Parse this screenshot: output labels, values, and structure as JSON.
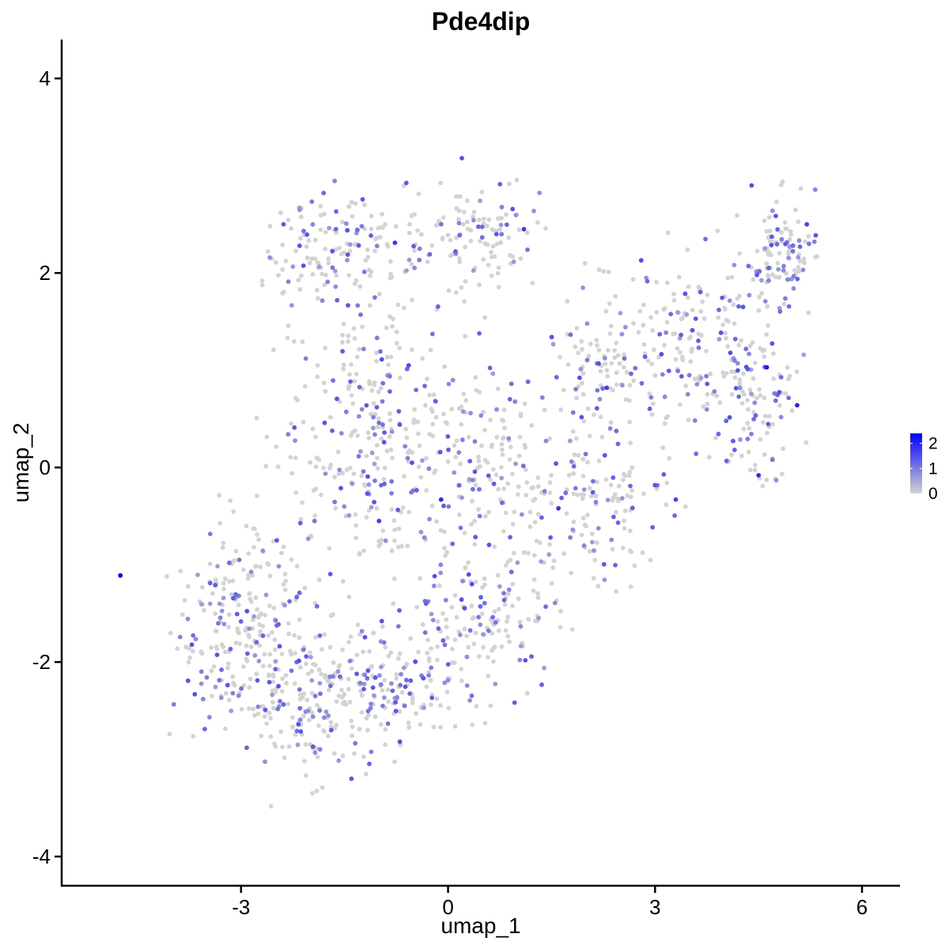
{
  "chart_data": {
    "type": "scatter",
    "title": "Pde4dip",
    "xlabel": "umap_1",
    "ylabel": "umap_2",
    "xlim": [
      -5.6,
      6.55
    ],
    "ylim": [
      -4.3,
      4.4
    ],
    "x_ticks": [
      -3,
      0,
      3,
      6
    ],
    "y_ticks": [
      -4,
      -2,
      0,
      2,
      4
    ],
    "x_tick_labels": [
      "-3",
      "0",
      "3",
      "6"
    ],
    "y_tick_labels": [
      "-4",
      "-2",
      "0",
      "2",
      "4"
    ],
    "grid": false,
    "legend": {
      "placement": "right",
      "type": "gradient",
      "title": "",
      "min": 0,
      "max": 2.4,
      "ticks": [
        0,
        1,
        2
      ],
      "tick_labels": [
        "0",
        "1",
        "2"
      ],
      "color_low": "#d3d3d3",
      "color_high": "#0000ff"
    },
    "point_colors": {
      "low": "#d3d3d3",
      "high": "#0000ff"
    },
    "highlighted_points": [
      {
        "x": -4.75,
        "y": -1.11,
        "value": 2.4
      },
      {
        "x": 4.62,
        "y": 1.03,
        "value": 2.1
      },
      {
        "x": 5.06,
        "y": 0.64,
        "value": 2.0
      },
      {
        "x": 0.2,
        "y": 3.18,
        "value": 1.5
      },
      {
        "x": -0.77,
        "y": 2.31,
        "value": 1.8
      },
      {
        "x": 1.1,
        "y": 2.45,
        "value": 1.7
      },
      {
        "x": -0.57,
        "y": 1.05,
        "value": 1.6
      },
      {
        "x": -0.1,
        "y": -0.33,
        "value": 1.9
      },
      {
        "x": 1.6,
        "y": -0.42,
        "value": 1.8
      },
      {
        "x": 2.3,
        "y": 0.82,
        "value": 1.7
      },
      {
        "x": 3.3,
        "y": -0.33,
        "value": 1.6
      },
      {
        "x": 4.5,
        "y": -0.08,
        "value": 1.9
      },
      {
        "x": -1.0,
        "y": -0.55,
        "value": 1.7
      },
      {
        "x": 0.3,
        "y": -1.1,
        "value": 1.5
      },
      {
        "x": -1.4,
        "y": -3.2,
        "value": 1.4
      },
      {
        "x": 2.8,
        "y": 2.13,
        "value": 1.5
      },
      {
        "x": 5.2,
        "y": 2.5,
        "value": 1.6
      },
      {
        "x": 4.4,
        "y": 2.9,
        "value": 1.5
      }
    ],
    "clusters": [
      {
        "center_x": -3.0,
        "center_y": -1.6,
        "spread_x": 0.9,
        "spread_y": 0.9,
        "count": 240
      },
      {
        "center_x": -2.0,
        "center_y": -2.4,
        "spread_x": 0.8,
        "spread_y": 0.6,
        "count": 170
      },
      {
        "center_x": -0.8,
        "center_y": -2.3,
        "spread_x": 0.9,
        "spread_y": 0.6,
        "count": 150
      },
      {
        "center_x": -1.2,
        "center_y": 0.4,
        "spread_x": 1.1,
        "spread_y": 1.2,
        "count": 260
      },
      {
        "center_x": -1.6,
        "center_y": 2.2,
        "spread_x": 1.0,
        "spread_y": 0.5,
        "count": 150
      },
      {
        "center_x": 0.4,
        "center_y": 2.4,
        "spread_x": 0.8,
        "spread_y": 0.5,
        "count": 110
      },
      {
        "center_x": 0.5,
        "center_y": 0.0,
        "spread_x": 1.0,
        "spread_y": 1.1,
        "count": 200
      },
      {
        "center_x": 0.5,
        "center_y": -1.6,
        "spread_x": 0.9,
        "spread_y": 0.6,
        "count": 140
      },
      {
        "center_x": 2.2,
        "center_y": -0.4,
        "spread_x": 0.8,
        "spread_y": 0.7,
        "count": 130
      },
      {
        "center_x": 2.5,
        "center_y": 1.1,
        "spread_x": 0.8,
        "spread_y": 0.6,
        "count": 120
      },
      {
        "center_x": 3.8,
        "center_y": 1.2,
        "spread_x": 0.8,
        "spread_y": 0.8,
        "count": 160
      },
      {
        "center_x": 4.8,
        "center_y": 2.2,
        "spread_x": 0.45,
        "spread_y": 0.45,
        "count": 110
      },
      {
        "center_x": 4.6,
        "center_y": 0.3,
        "spread_x": 0.5,
        "spread_y": 0.6,
        "count": 70
      }
    ],
    "expressed_fraction": 0.3
  }
}
